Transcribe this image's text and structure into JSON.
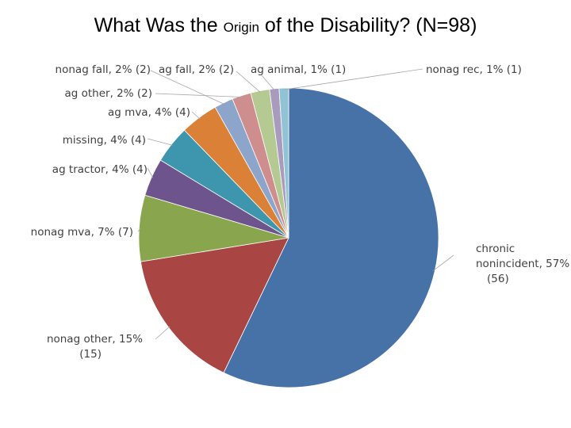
{
  "title": {
    "part1": "What Was the ",
    "part2": "Origin",
    "part3": " of the Disability? (N=98)"
  },
  "chart_data": {
    "type": "pie",
    "title": "What Was the Origin of the Disability? (N=98)",
    "slices": [
      {
        "name": "chronic nonincident",
        "value": 56,
        "percent": "57%",
        "lines": [
          "chronic",
          "nonincident, 57%",
          "(56)"
        ],
        "color": "#4672A8"
      },
      {
        "name": "nonag other",
        "value": 15,
        "percent": "15%",
        "lines": [
          "nonag other, 15%",
          "(15)"
        ],
        "color": "#A94643"
      },
      {
        "name": "nonag mva",
        "value": 7,
        "percent": "7%",
        "lines": [
          "nonag mva, 7% (7)"
        ],
        "color": "#89A54E"
      },
      {
        "name": "ag tractor",
        "value": 4,
        "percent": "4%",
        "lines": [
          "ag tractor, 4% (4)"
        ],
        "color": "#6E548D"
      },
      {
        "name": "missing",
        "value": 4,
        "percent": "4%",
        "lines": [
          "missing, 4% (4)"
        ],
        "color": "#3D96AE"
      },
      {
        "name": "ag mva",
        "value": 4,
        "percent": "4%",
        "lines": [
          "ag mva, 4% (4)"
        ],
        "color": "#DA8137"
      },
      {
        "name": "nonag fall",
        "value": 2,
        "percent": "2%",
        "lines": [
          "nonag fall, 2% (2)"
        ],
        "color": "#8EA5CB"
      },
      {
        "name": "ag other",
        "value": 2,
        "percent": "2%",
        "lines": [
          "ag other, 2% (2)"
        ],
        "color": "#CE8E8D"
      },
      {
        "name": "ag fall",
        "value": 2,
        "percent": "2%",
        "lines": [
          "ag fall, 2% (2)"
        ],
        "color": "#B5CA92"
      },
      {
        "name": "ag animal",
        "value": 1,
        "percent": "1%",
        "lines": [
          "ag animal, 1% (1)"
        ],
        "color": "#A99BBD"
      },
      {
        "name": "nonag rec",
        "value": 1,
        "percent": "1%",
        "lines": [
          "nonag rec, 1% (1)"
        ],
        "color": "#91C3D5"
      }
    ]
  }
}
